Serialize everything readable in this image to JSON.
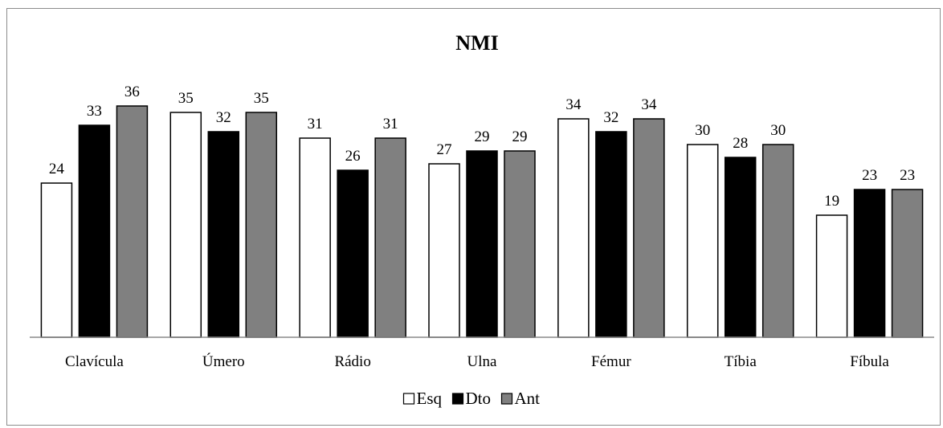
{
  "chart_data": {
    "type": "bar",
    "title": "NMI",
    "xlabel": "",
    "ylabel": "",
    "ylim": [
      0,
      36
    ],
    "grid": false,
    "legend_position": "bottom",
    "categories": [
      "Clavícula",
      "Úmero",
      "Rádio",
      "Ulna",
      "Fémur",
      "Tíbia",
      "Fíbula"
    ],
    "series": [
      {
        "name": "Esq",
        "color": "#ffffff",
        "values": [
          24,
          35,
          31,
          27,
          34,
          30,
          19
        ]
      },
      {
        "name": "Dto",
        "color": "#000000",
        "values": [
          33,
          32,
          26,
          29,
          32,
          28,
          23
        ]
      },
      {
        "name": "Ant",
        "color": "#808080",
        "values": [
          36,
          35,
          31,
          29,
          34,
          30,
          23
        ]
      }
    ]
  }
}
